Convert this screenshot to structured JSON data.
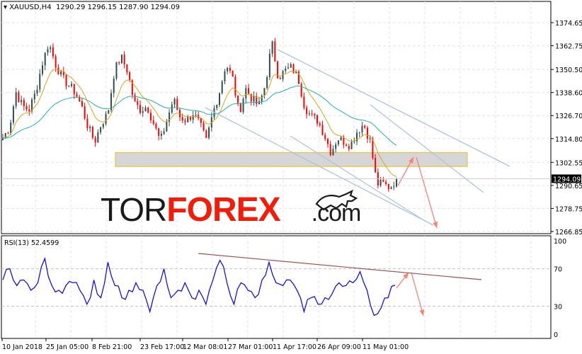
{
  "header": {
    "symbol": "XAUUSD,H4",
    "open": "1290.29",
    "high": "1296.15",
    "low": "1287.90",
    "close": "1294.09"
  },
  "watermark": {
    "part1": "TOR",
    "part2": "FOREX",
    "part3": ".com"
  },
  "colors": {
    "bull": "#2f4f4f",
    "bear": "#ff0000",
    "ma_fast": "#daa520",
    "ma_slow": "#20b2aa",
    "rsi": "#0000ff",
    "channel": "#b0c4de",
    "arrow": "#fa8072",
    "zone_border": "#f0c040",
    "rsi_trend": "#a0524d"
  },
  "chart_data": [
    {
      "type": "candlestick",
      "title": "XAUUSD,H4",
      "x_tick_labels": [
        "10 Jan 2018",
        "25 Jan 05:00",
        "8 Feb 21:00",
        "23 Feb 17:00",
        "12 Mar 08:01",
        "27 Mar 01:00",
        "11 Apr 17:00",
        "26 Apr 09:00",
        "11 May 01:00"
      ],
      "y_tick_labels": [
        "1374.65",
        "1362.75",
        "1350.50",
        "1338.60",
        "1326.70",
        "1314.80",
        "1302.55",
        "1290.65",
        "1278.75",
        "1266.85"
      ],
      "ylim": [
        1266.85,
        1374.65
      ],
      "close": [
        1315.1,
        1320.6,
        1338.8,
        1331.5,
        1329.7,
        1338.8,
        1353.5,
        1364.4,
        1353.5,
        1346.2,
        1342.5,
        1338.8,
        1331.5,
        1320.6,
        1313.3,
        1322.4,
        1327.9,
        1349.8,
        1357.1,
        1349.8,
        1333.4,
        1329.7,
        1331.5,
        1322.4,
        1313.3,
        1324.2,
        1335.2,
        1326.0,
        1324.2,
        1327.9,
        1322.4,
        1313.3,
        1327.9,
        1338.8,
        1353.5,
        1346.2,
        1327.9,
        1340.7,
        1335.2,
        1331.5,
        1342.5,
        1364.4,
        1346.2,
        1349.8,
        1351.6,
        1346.2,
        1331.5,
        1326.0,
        1324.2,
        1316.9,
        1307.8,
        1315.1,
        1313.3,
        1311.4,
        1318.7,
        1322.4,
        1313.3,
        1291.4,
        1291.4,
        1289.5,
        1294.09
      ],
      "last_price_label": "1294.09",
      "indicators": [
        "moving-average-fast",
        "moving-average-slow"
      ],
      "support_zone": [
        1300.4,
        1307.6
      ],
      "grid": true
    },
    {
      "type": "line",
      "title": "RSI(13) 52.4599",
      "y_tick_labels": [
        "100",
        "70",
        "30",
        "0"
      ],
      "ylim": [
        0,
        100
      ],
      "levels": [
        30,
        70
      ],
      "values": [
        58,
        70,
        52,
        58,
        47,
        55,
        81,
        52,
        47,
        52,
        55,
        47,
        32,
        58,
        39,
        77,
        52,
        39,
        47,
        55,
        47,
        24,
        52,
        70,
        39,
        47,
        55,
        39,
        47,
        32,
        58,
        79,
        55,
        32,
        55,
        47,
        39,
        58,
        77,
        55,
        52,
        58,
        47,
        24,
        39,
        32,
        39,
        43,
        55,
        52,
        55,
        67,
        47,
        20,
        28,
        39,
        52.46
      ],
      "grid": true
    }
  ]
}
